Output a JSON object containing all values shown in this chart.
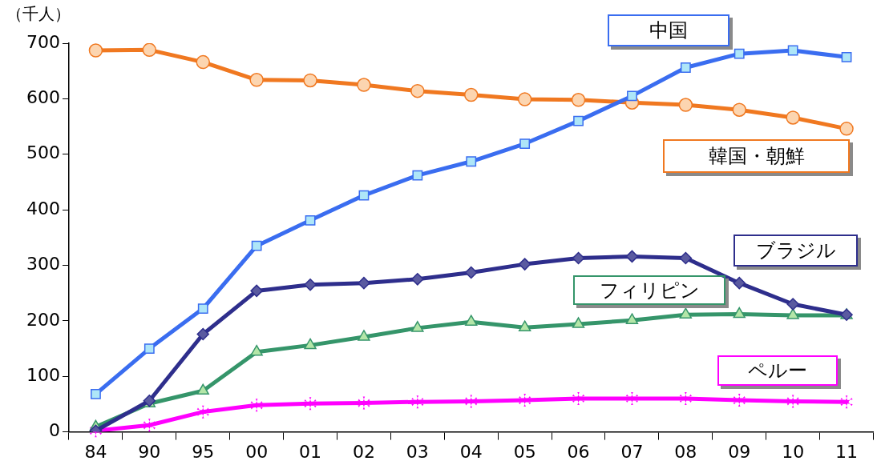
{
  "chart_data": {
    "type": "line",
    "ylabel": "（千人）",
    "categories": [
      "84",
      "90",
      "95",
      "00",
      "01",
      "02",
      "03",
      "04",
      "05",
      "06",
      "07",
      "08",
      "09",
      "10",
      "11"
    ],
    "ylim": [
      0,
      700
    ],
    "yticks": [
      0,
      100,
      200,
      300,
      400,
      500,
      600,
      700
    ],
    "grid": false,
    "legend": false,
    "series": [
      {
        "name": "中国",
        "color": "#3a6df0",
        "marker": "square",
        "values": [
          68,
          150,
          222,
          335,
          381,
          426,
          462,
          487,
          519,
          560,
          605,
          656,
          681,
          687,
          675
        ]
      },
      {
        "name": "韓国・朝鮮",
        "color": "#f07820",
        "marker": "circle",
        "values": [
          687,
          688,
          666,
          634,
          633,
          625,
          614,
          607,
          599,
          598,
          593,
          589,
          580,
          566,
          546
        ]
      },
      {
        "name": "ブラジル",
        "color": "#2e2e8c",
        "marker": "diamond",
        "values": [
          2,
          56,
          176,
          254,
          265,
          268,
          275,
          287,
          302,
          313,
          316,
          313,
          268,
          230,
          211
        ]
      },
      {
        "name": "フィリピン",
        "color": "#35956a",
        "marker": "triangle",
        "values": [
          9,
          51,
          74,
          144,
          156,
          171,
          187,
          198,
          188,
          194,
          201,
          211,
          212,
          210,
          210
        ]
      },
      {
        "name": "ペルー",
        "color": "#ff00ff",
        "marker": "star",
        "values": [
          2,
          12,
          36,
          48,
          51,
          52,
          54,
          55,
          57,
          60,
          60,
          60,
          57,
          55,
          54
        ]
      }
    ]
  }
}
